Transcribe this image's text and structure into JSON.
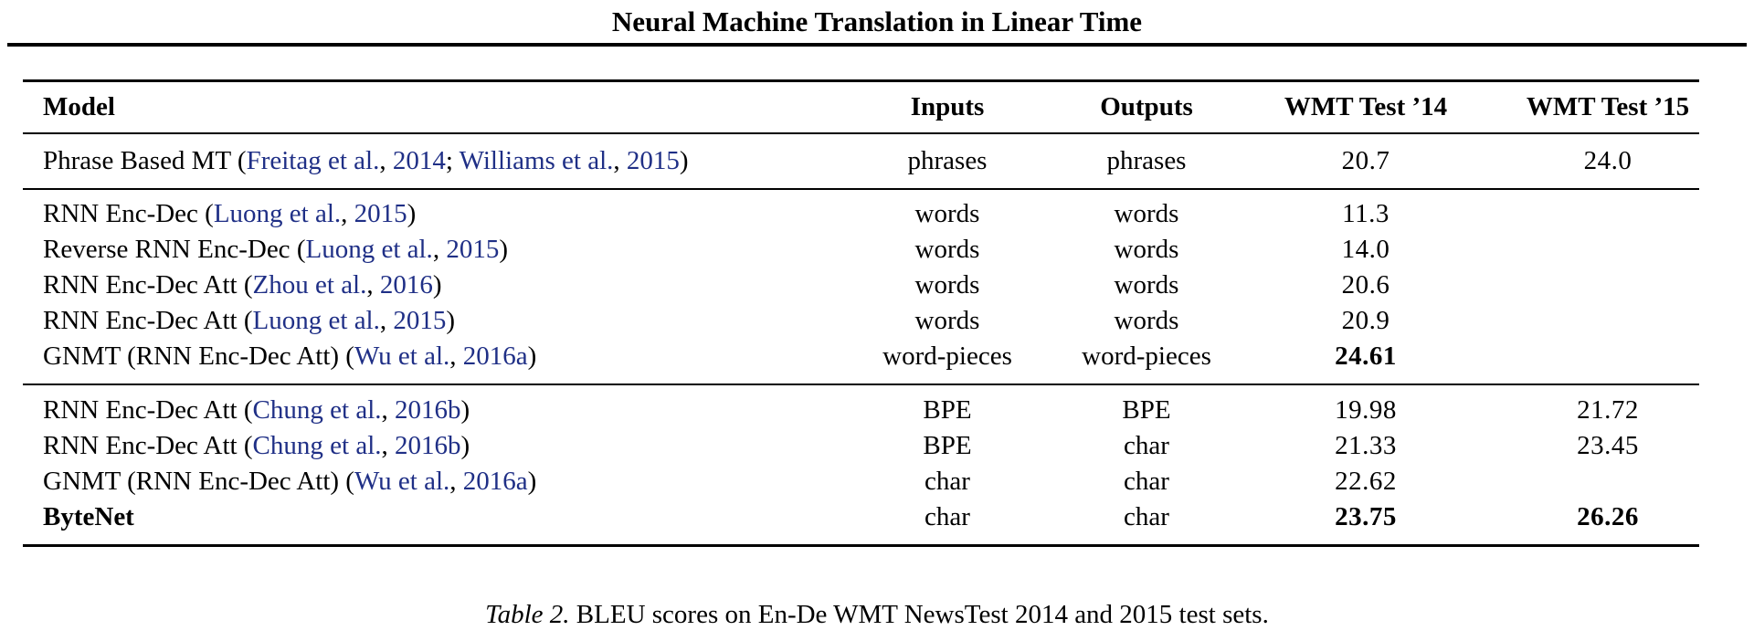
{
  "running_title": "Neural Machine Translation in Linear Time",
  "table": {
    "headers": {
      "model": "Model",
      "inputs": "Inputs",
      "outputs": "Outputs",
      "wmt14": "WMT Test ’14",
      "wmt15": "WMT Test ’15"
    },
    "rows": [
      {
        "model": "Phrase Based MT",
        "cites": [
          {
            "authors": "Freitag et al.",
            "year": "2014"
          },
          {
            "authors": "Williams et al.",
            "year": "2015"
          }
        ],
        "inputs": "phrases",
        "outputs": "phrases",
        "wmt14": "20.7",
        "wmt15": "24.0"
      },
      {
        "model": "RNN Enc-Dec",
        "cites": [
          {
            "authors": "Luong et al.",
            "year": "2015"
          }
        ],
        "inputs": "words",
        "outputs": "words",
        "wmt14": "11.3",
        "wmt15": ""
      },
      {
        "model": "Reverse RNN Enc-Dec",
        "cites": [
          {
            "authors": "Luong et al.",
            "year": "2015"
          }
        ],
        "inputs": "words",
        "outputs": "words",
        "wmt14": "14.0",
        "wmt15": ""
      },
      {
        "model": "RNN Enc-Dec Att",
        "cites": [
          {
            "authors": "Zhou et al.",
            "year": "2016"
          }
        ],
        "inputs": "words",
        "outputs": "words",
        "wmt14": "20.6",
        "wmt15": ""
      },
      {
        "model": "RNN Enc-Dec Att",
        "cites": [
          {
            "authors": "Luong et al.",
            "year": "2015"
          }
        ],
        "inputs": "words",
        "outputs": "words",
        "wmt14": "20.9",
        "wmt15": ""
      },
      {
        "model": "GNMT (RNN Enc-Dec Att)",
        "cites": [
          {
            "authors": "Wu et al.",
            "year": "2016a"
          }
        ],
        "inputs": "word-pieces",
        "outputs": "word-pieces",
        "wmt14": "24.61",
        "wmt15": "",
        "bold": [
          "wmt14"
        ]
      },
      {
        "model": "RNN Enc-Dec Att",
        "cites": [
          {
            "authors": "Chung et al.",
            "year": "2016b"
          }
        ],
        "inputs": "BPE",
        "outputs": "BPE",
        "wmt14": "19.98",
        "wmt15": "21.72"
      },
      {
        "model": "RNN Enc-Dec Att",
        "cites": [
          {
            "authors": "Chung et al.",
            "year": "2016b"
          }
        ],
        "inputs": "BPE",
        "outputs": "char",
        "wmt14": "21.33",
        "wmt15": "23.45"
      },
      {
        "model": "GNMT (RNN Enc-Dec Att)",
        "cites": [
          {
            "authors": "Wu et al.",
            "year": "2016a"
          }
        ],
        "inputs": "char",
        "outputs": "char",
        "wmt14": "22.62",
        "wmt15": ""
      },
      {
        "model": "ByteNet",
        "cites": [],
        "inputs": "char",
        "outputs": "char",
        "wmt14": "23.75",
        "wmt15": "26.26",
        "bold": [
          "model",
          "wmt14",
          "wmt15"
        ]
      }
    ]
  },
  "caption": {
    "label": "Table 2.",
    "text": "BLEU scores on En-De WMT NewsTest 2014 and 2015 test sets."
  }
}
